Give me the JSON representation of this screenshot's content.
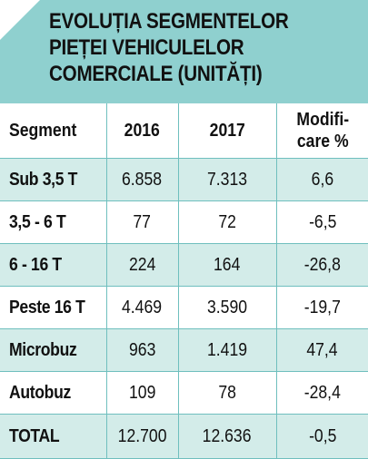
{
  "title": {
    "line1": "EVOLUȚIA SEGMENTELOR",
    "line2": "PIEȚEI VEHICULELOR",
    "line3": "COMERCIALE (UNITĂȚI)"
  },
  "table": {
    "headers": {
      "segment": "Segment",
      "y2016": "2016",
      "y2017": "2017",
      "change_line1": "Modifi-",
      "change_line2": "care %"
    },
    "rows": [
      {
        "segment": "Sub 3,5 T",
        "y2016": "6.858",
        "y2017": "7.313",
        "change": "6,6"
      },
      {
        "segment": "3,5 - 6 T",
        "y2016": "77",
        "y2017": "72",
        "change": "-6,5"
      },
      {
        "segment": "6 - 16 T",
        "y2016": "224",
        "y2017": "164",
        "change": "-26,8"
      },
      {
        "segment": "Peste 16 T",
        "y2016": "4.469",
        "y2017": "3.590",
        "change": "-19,7"
      },
      {
        "segment": "Microbuz",
        "y2016": "963",
        "y2017": "1.419",
        "change": "47,4"
      },
      {
        "segment": "Autobuz",
        "y2016": "109",
        "y2017": "78",
        "change": "-28,4"
      },
      {
        "segment": "TOTAL",
        "y2016": "12.700",
        "y2017": "12.636",
        "change": "-0,5"
      }
    ]
  },
  "colors": {
    "header_band": "#8fd0cf",
    "row_tint": "#d3ece9",
    "grid_line": "#6fbfbe"
  }
}
